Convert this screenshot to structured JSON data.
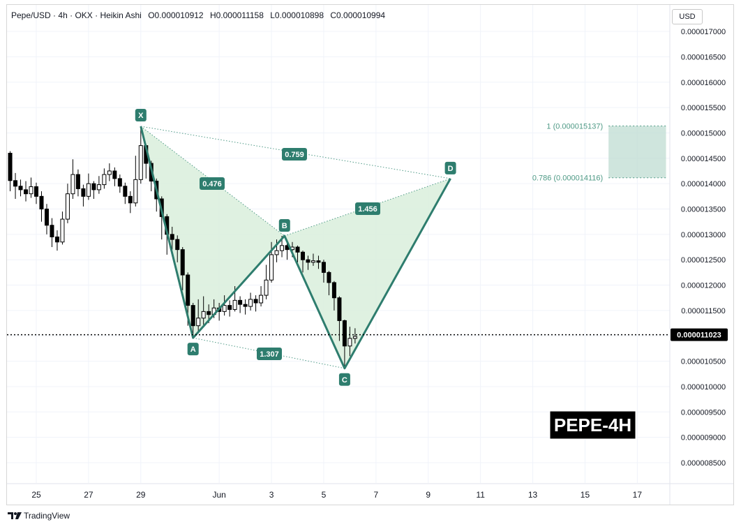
{
  "header": {
    "symbol": "Pepe/USD",
    "interval": "4h",
    "exchange": "OKX",
    "style": "Heikin Ashi",
    "open": "O0.000010912",
    "high": "H0.000011158",
    "low": "L0.000010898",
    "close": "C0.000010994"
  },
  "currency": "USD",
  "footer": {
    "brand": "TradingView"
  },
  "colors": {
    "pattern": "#2e7d6e",
    "fill": "#d9eedc",
    "zone": "#bfdcd2",
    "price_box": "#000000"
  },
  "chart_data": {
    "type": "candlestick",
    "title": "PEPE-4H",
    "y_axis": {
      "min": 8.1e-06,
      "max": 1.74e-05,
      "ticks": [
        "0.000008500",
        "0.000009000",
        "0.000009500",
        "0.000010000",
        "0.000010500",
        "0.000011000",
        "0.000011500",
        "0.000012000",
        "0.000012500",
        "0.000013000",
        "0.000013500",
        "0.000014000",
        "0.000014500",
        "0.000015000",
        "0.000015500",
        "0.000016000",
        "0.000016500",
        "0.000017000"
      ]
    },
    "x_axis": {
      "ticks": [
        {
          "label": "25",
          "day": 25
        },
        {
          "label": "27",
          "day": 27
        },
        {
          "label": "29",
          "day": 29
        },
        {
          "label": "Jun",
          "day": 32
        },
        {
          "label": "3",
          "day": 34
        },
        {
          "label": "5",
          "day": 36
        },
        {
          "label": "7",
          "day": 38
        },
        {
          "label": "9",
          "day": 40
        },
        {
          "label": "11",
          "day": 42
        },
        {
          "label": "13",
          "day": 44
        },
        {
          "label": "15",
          "day": 46
        },
        {
          "label": "17",
          "day": 48
        }
      ],
      "day_range": [
        23.9,
        49.2
      ]
    },
    "current_price": {
      "value": 1.1023e-05,
      "label": "0.000011023"
    },
    "harmonic_points": [
      {
        "label": "X",
        "day": 29.0,
        "price": 1.513e-05
      },
      {
        "label": "A",
        "day": 31.0,
        "price": 1.096e-05
      },
      {
        "label": "B",
        "day": 34.5,
        "price": 1.297e-05
      },
      {
        "label": "C",
        "day": 36.8,
        "price": 1.036e-05
      },
      {
        "label": "D",
        "day": 40.85,
        "price": 1.41e-05
      }
    ],
    "ratios": [
      {
        "label": "0.759",
        "from": "X",
        "to": "D"
      },
      {
        "label": "0.476",
        "from": "X",
        "to": "B"
      },
      {
        "label": "1.456",
        "from": "B",
        "to": "D"
      },
      {
        "label": "1.307",
        "from": "A",
        "to": "C"
      }
    ],
    "target_zone": {
      "upper": {
        "value": 1.5137e-05,
        "label": "1 (0.000015137)"
      },
      "lower": {
        "value": 1.4116e-05,
        "label": "0.786 (0.000014116)"
      },
      "day_range": [
        46.9,
        49.1
      ]
    },
    "candles": [
      [
        24.0,
        1.46e-05,
        1.406e-05,
        1.464e-05,
        1.385e-05
      ],
      [
        24.2,
        1.406e-05,
        1.395e-05,
        1.421e-05,
        1.37e-05
      ],
      [
        24.4,
        1.395e-05,
        1.388e-05,
        1.408e-05,
        1.375e-05
      ],
      [
        24.6,
        1.388e-05,
        1.38e-05,
        1.405e-05,
        1.365e-05
      ],
      [
        24.8,
        1.38e-05,
        1.394e-05,
        1.412e-05,
        1.372e-05
      ],
      [
        25.0,
        1.394e-05,
        1.375e-05,
        1.402e-05,
        1.36e-05
      ],
      [
        25.2,
        1.375e-05,
        1.35e-05,
        1.385e-05,
        1.325e-05
      ],
      [
        25.4,
        1.35e-05,
        1.318e-05,
        1.36e-05,
        1.3e-05
      ],
      [
        25.6,
        1.318e-05,
        1.295e-05,
        1.332e-05,
        1.275e-05
      ],
      [
        25.8,
        1.295e-05,
        1.285e-05,
        1.308e-05,
        1.268e-05
      ],
      [
        26.0,
        1.285e-05,
        1.33e-05,
        1.345e-05,
        1.28e-05
      ],
      [
        26.2,
        1.33e-05,
        1.38e-05,
        1.4e-05,
        1.322e-05
      ],
      [
        26.4,
        1.38e-05,
        1.418e-05,
        1.448e-05,
        1.37e-05
      ],
      [
        26.6,
        1.418e-05,
        1.39e-05,
        1.428e-05,
        1.375e-05
      ],
      [
        26.8,
        1.39e-05,
        1.375e-05,
        1.398e-05,
        1.355e-05
      ],
      [
        27.0,
        1.375e-05,
        1.4e-05,
        1.42e-05,
        1.368e-05
      ],
      [
        27.2,
        1.4e-05,
        1.388e-05,
        1.405e-05,
        1.37e-05
      ],
      [
        27.4,
        1.388e-05,
        1.398e-05,
        1.415e-05,
        1.38e-05
      ],
      [
        27.6,
        1.398e-05,
        1.418e-05,
        1.43e-05,
        1.39e-05
      ],
      [
        27.8,
        1.418e-05,
        1.425e-05,
        1.44e-05,
        1.405e-05
      ],
      [
        28.0,
        1.425e-05,
        1.41e-05,
        1.432e-05,
        1.395e-05
      ],
      [
        28.2,
        1.41e-05,
        1.395e-05,
        1.418e-05,
        1.382e-05
      ],
      [
        28.4,
        1.395e-05,
        1.375e-05,
        1.402e-05,
        1.36e-05
      ],
      [
        28.6,
        1.375e-05,
        1.362e-05,
        1.385e-05,
        1.342e-05
      ],
      [
        28.8,
        1.362e-05,
        1.408e-05,
        1.455e-05,
        1.355e-05
      ],
      [
        29.0,
        1.408e-05,
        1.475e-05,
        1.513e-05,
        1.4e-05
      ],
      [
        29.2,
        1.475e-05,
        1.44e-05,
        1.478e-05,
        1.41e-05
      ],
      [
        29.4,
        1.44e-05,
        1.405e-05,
        1.445e-05,
        1.385e-05
      ],
      [
        29.6,
        1.405e-05,
        1.37e-05,
        1.41e-05,
        1.345e-05
      ],
      [
        29.8,
        1.37e-05,
        1.335e-05,
        1.375e-05,
        1.29e-05
      ],
      [
        30.0,
        1.335e-05,
        1.3e-05,
        1.34e-05,
        1.26e-05
      ],
      [
        30.2,
        1.3e-05,
        1.29e-05,
        1.315e-05,
        1.27e-05
      ],
      [
        30.4,
        1.29e-05,
        1.27e-05,
        1.298e-05,
        1.245e-05
      ],
      [
        30.6,
        1.27e-05,
        1.22e-05,
        1.275e-05,
        1.19e-05
      ],
      [
        30.8,
        1.22e-05,
        1.16e-05,
        1.225e-05,
        1.12e-05
      ],
      [
        31.0,
        1.16e-05,
        1.12e-05,
        1.165e-05,
        1.096e-05
      ],
      [
        31.2,
        1.12e-05,
        1.135e-05,
        1.172e-05,
        1.105e-05
      ],
      [
        31.4,
        1.135e-05,
        1.148e-05,
        1.178e-05,
        1.122e-05
      ],
      [
        31.6,
        1.148e-05,
        1.142e-05,
        1.162e-05,
        1.125e-05
      ],
      [
        31.8,
        1.142e-05,
        1.155e-05,
        1.172e-05,
        1.135e-05
      ],
      [
        32.0,
        1.155e-05,
        1.148e-05,
        1.165e-05,
        1.13e-05
      ],
      [
        32.2,
        1.148e-05,
        1.16e-05,
        1.18e-05,
        1.14e-05
      ],
      [
        32.4,
        1.16e-05,
        1.152e-05,
        1.17e-05,
        1.138e-05
      ],
      [
        32.6,
        1.152e-05,
        1.17e-05,
        1.198e-05,
        1.148e-05
      ],
      [
        32.8,
        1.17e-05,
        1.162e-05,
        1.178e-05,
        1.145e-05
      ],
      [
        33.0,
        1.162e-05,
        1.158e-05,
        1.172e-05,
        1.142e-05
      ],
      [
        33.2,
        1.158e-05,
        1.172e-05,
        1.185e-05,
        1.15e-05
      ],
      [
        33.4,
        1.172e-05,
        1.165e-05,
        1.18e-05,
        1.148e-05
      ],
      [
        33.6,
        1.165e-05,
        1.18e-05,
        1.198e-05,
        1.158e-05
      ],
      [
        33.8,
        1.18e-05,
        1.21e-05,
        1.24e-05,
        1.172e-05
      ],
      [
        34.0,
        1.21e-05,
        1.26e-05,
        1.285e-05,
        1.205e-05
      ],
      [
        34.2,
        1.26e-05,
        1.268e-05,
        1.29e-05,
        1.245e-05
      ],
      [
        34.4,
        1.268e-05,
        1.278e-05,
        1.297e-05,
        1.255e-05
      ],
      [
        34.6,
        1.278e-05,
        1.27e-05,
        1.288e-05,
        1.25e-05
      ],
      [
        34.8,
        1.27e-05,
        1.275e-05,
        1.285e-05,
        1.255e-05
      ],
      [
        35.0,
        1.275e-05,
        1.265e-05,
        1.278e-05,
        1.245e-05
      ],
      [
        35.2,
        1.265e-05,
        1.25e-05,
        1.268e-05,
        1.225e-05
      ],
      [
        35.4,
        1.25e-05,
        1.245e-05,
        1.258e-05,
        1.23e-05
      ],
      [
        35.6,
        1.245e-05,
        1.248e-05,
        1.262e-05,
        1.238e-05
      ],
      [
        35.8,
        1.248e-05,
        1.245e-05,
        1.258e-05,
        1.232e-05
      ],
      [
        36.0,
        1.245e-05,
        1.225e-05,
        1.25e-05,
        1.205e-05
      ],
      [
        36.2,
        1.225e-05,
        1.205e-05,
        1.228e-05,
        1.18e-05
      ],
      [
        36.4,
        1.205e-05,
        1.175e-05,
        1.208e-05,
        1.15e-05
      ],
      [
        36.6,
        1.175e-05,
        1.13e-05,
        1.178e-05,
        1.09e-05
      ],
      [
        36.8,
        1.13e-05,
        1.08e-05,
        1.132e-05,
        1.036e-05
      ],
      [
        37.0,
        1.08e-05,
        1.095e-05,
        1.118e-05,
        1.06e-05
      ],
      [
        37.2,
        1.095e-05,
        1.099e-05,
        1.115e-05,
        1.085e-05
      ]
    ]
  }
}
